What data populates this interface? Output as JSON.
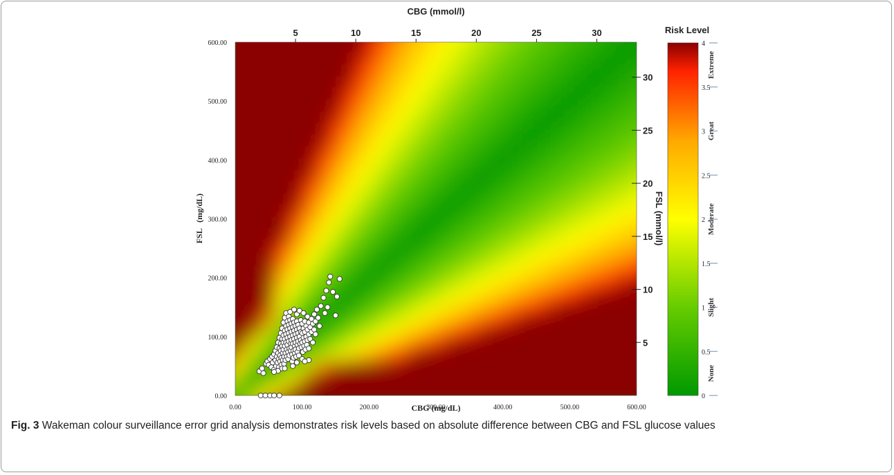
{
  "caption": {
    "label": "Fig. 3",
    "text": "Wakeman colour surveillance error grid analysis demonstrates risk levels based on absolute difference between CBG and FSL glucose values"
  },
  "chart_data": {
    "type": "scatter",
    "x_bottom": {
      "label": "CBG (mg/dL)",
      "range": [
        0,
        600
      ],
      "ticks": [
        0,
        100,
        200,
        300,
        400,
        500,
        600
      ],
      "tick_labels": [
        "0.00",
        "100.00",
        "200.00",
        "300.00",
        "400.00",
        "500.00",
        "600.00"
      ]
    },
    "y_left": {
      "label": "FSL   (mg/dL)",
      "range": [
        0,
        600
      ],
      "ticks": [
        0,
        100,
        200,
        300,
        400,
        500,
        600
      ],
      "tick_labels": [
        "0.00",
        "100.00",
        "200.00",
        "300.00",
        "400.00",
        "500.00",
        "600.00"
      ]
    },
    "x_top": {
      "label": "CBG (mmol/l)",
      "range": [
        0,
        33.3
      ],
      "ticks": [
        5,
        10,
        15,
        20,
        25,
        30
      ],
      "tick_labels": [
        "5",
        "10",
        "15",
        "20",
        "25",
        "30"
      ]
    },
    "y_right": {
      "label": "FSL (mmol/l)",
      "range": [
        0,
        33.3
      ],
      "ticks": [
        5,
        10,
        15,
        20,
        25,
        30
      ],
      "tick_labels": [
        "5",
        "10",
        "15",
        "20",
        "25",
        "30"
      ]
    },
    "colorbar": {
      "title": "Risk Level",
      "range": [
        0,
        4
      ],
      "ticks": [
        0,
        0.5,
        1,
        1.5,
        2,
        2.5,
        3,
        3.5,
        4
      ],
      "tick_labels": [
        "0",
        "0.5",
        "1",
        "1.5",
        "2",
        "2.5",
        "3",
        "3.5",
        "4"
      ],
      "zones": [
        {
          "name": "None",
          "range": [
            0,
            0.5
          ]
        },
        {
          "name": "Slight",
          "range": [
            0.5,
            1.5
          ]
        },
        {
          "name": "Moderate",
          "range": [
            1.5,
            2.5
          ]
        },
        {
          "name": "Great",
          "range": [
            2.5,
            3.5
          ]
        },
        {
          "name": "Extreme",
          "range": [
            3.5,
            4
          ]
        }
      ],
      "colors": [
        "#009900",
        "#66cc00",
        "#ffff00",
        "#ffaa00",
        "#ff2200",
        "#8b0000"
      ]
    },
    "grid": false,
    "points": [
      [
        38,
        0
      ],
      [
        45,
        0
      ],
      [
        52,
        0
      ],
      [
        58,
        0
      ],
      [
        66,
        0
      ],
      [
        36,
        41
      ],
      [
        42,
        38
      ],
      [
        40,
        46
      ],
      [
        46,
        54
      ],
      [
        48,
        58
      ],
      [
        50,
        52
      ],
      [
        52,
        62
      ],
      [
        54,
        48
      ],
      [
        55,
        66
      ],
      [
        56,
        56
      ],
      [
        58,
        70
      ],
      [
        58,
        44
      ],
      [
        60,
        76
      ],
      [
        60,
        60
      ],
      [
        61,
        50
      ],
      [
        62,
        82
      ],
      [
        62,
        66
      ],
      [
        63,
        56
      ],
      [
        64,
        90
      ],
      [
        64,
        72
      ],
      [
        65,
        62
      ],
      [
        65,
        48
      ],
      [
        66,
        98
      ],
      [
        66,
        80
      ],
      [
        67,
        68
      ],
      [
        67,
        58
      ],
      [
        68,
        106
      ],
      [
        68,
        88
      ],
      [
        68,
        76
      ],
      [
        69,
        64
      ],
      [
        69,
        52
      ],
      [
        70,
        114
      ],
      [
        70,
        96
      ],
      [
        70,
        84
      ],
      [
        71,
        72
      ],
      [
        71,
        60
      ],
      [
        72,
        124
      ],
      [
        72,
        102
      ],
      [
        72,
        90
      ],
      [
        72,
        78
      ],
      [
        73,
        66
      ],
      [
        73,
        54
      ],
      [
        74,
        132
      ],
      [
        74,
        110
      ],
      [
        74,
        96
      ],
      [
        74,
        84
      ],
      [
        75,
        72
      ],
      [
        75,
        60
      ],
      [
        76,
        140
      ],
      [
        76,
        118
      ],
      [
        76,
        104
      ],
      [
        76,
        90
      ],
      [
        77,
        78
      ],
      [
        77,
        66
      ],
      [
        78,
        126
      ],
      [
        78,
        112
      ],
      [
        78,
        98
      ],
      [
        78,
        86
      ],
      [
        79,
        74
      ],
      [
        79,
        62
      ],
      [
        80,
        134
      ],
      [
        80,
        120
      ],
      [
        80,
        106
      ],
      [
        80,
        92
      ],
      [
        81,
        80
      ],
      [
        81,
        68
      ],
      [
        82,
        142
      ],
      [
        82,
        128
      ],
      [
        82,
        114
      ],
      [
        82,
        100
      ],
      [
        83,
        88
      ],
      [
        83,
        76
      ],
      [
        84,
        122
      ],
      [
        84,
        108
      ],
      [
        84,
        94
      ],
      [
        84,
        82
      ],
      [
        85,
        70
      ],
      [
        85,
        58
      ],
      [
        86,
        130
      ],
      [
        86,
        116
      ],
      [
        86,
        102
      ],
      [
        86,
        88
      ],
      [
        87,
        76
      ],
      [
        87,
        64
      ],
      [
        88,
        146
      ],
      [
        88,
        124
      ],
      [
        88,
        110
      ],
      [
        88,
        96
      ],
      [
        89,
        84
      ],
      [
        89,
        72
      ],
      [
        90,
        118
      ],
      [
        90,
        104
      ],
      [
        90,
        90
      ],
      [
        90,
        78
      ],
      [
        91,
        66
      ],
      [
        92,
        138
      ],
      [
        92,
        126
      ],
      [
        92,
        112
      ],
      [
        92,
        98
      ],
      [
        93,
        86
      ],
      [
        93,
        74
      ],
      [
        94,
        120
      ],
      [
        94,
        106
      ],
      [
        94,
        92
      ],
      [
        95,
        80
      ],
      [
        95,
        68
      ],
      [
        96,
        144
      ],
      [
        96,
        114
      ],
      [
        96,
        100
      ],
      [
        97,
        88
      ],
      [
        98,
        128
      ],
      [
        98,
        108
      ],
      [
        98,
        94
      ],
      [
        99,
        82
      ],
      [
        100,
        122
      ],
      [
        100,
        106
      ],
      [
        100,
        90
      ],
      [
        101,
        74
      ],
      [
        102,
        140
      ],
      [
        102,
        114
      ],
      [
        102,
        98
      ],
      [
        103,
        84
      ],
      [
        104,
        126
      ],
      [
        104,
        108
      ],
      [
        104,
        92
      ],
      [
        105,
        78
      ],
      [
        106,
        118
      ],
      [
        106,
        100
      ],
      [
        107,
        86
      ],
      [
        108,
        134
      ],
      [
        108,
        112
      ],
      [
        108,
        94
      ],
      [
        110,
        124
      ],
      [
        110,
        104
      ],
      [
        110,
        80
      ],
      [
        112,
        116
      ],
      [
        112,
        96
      ],
      [
        114,
        130
      ],
      [
        114,
        108
      ],
      [
        116,
        122
      ],
      [
        116,
        90
      ],
      [
        118,
        112
      ],
      [
        118,
        138
      ],
      [
        120,
        126
      ],
      [
        122,
        146
      ],
      [
        124,
        132
      ],
      [
        126,
        118
      ],
      [
        128,
        152
      ],
      [
        132,
        166
      ],
      [
        134,
        140
      ],
      [
        136,
        178
      ],
      [
        138,
        150
      ],
      [
        140,
        192
      ],
      [
        142,
        202
      ],
      [
        146,
        176
      ],
      [
        150,
        136
      ],
      [
        152,
        168
      ],
      [
        156,
        198
      ],
      [
        110,
        60
      ],
      [
        100,
        62
      ],
      [
        92,
        56
      ],
      [
        86,
        50
      ],
      [
        64,
        42
      ],
      [
        120,
        104
      ],
      [
        70,
        46
      ],
      [
        58,
        40
      ],
      [
        74,
        46
      ],
      [
        104,
        58
      ]
    ]
  }
}
